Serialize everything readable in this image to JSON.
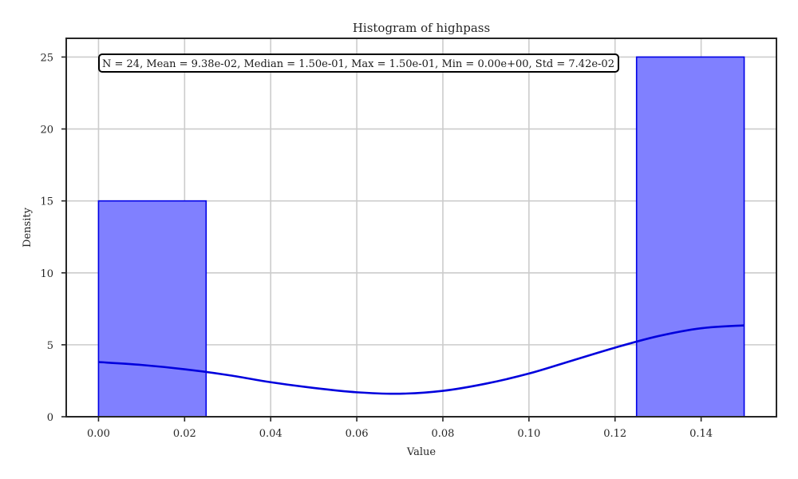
{
  "chart_data": {
    "type": "bar",
    "title": "Histogram of highpass",
    "xlabel": "Value",
    "ylabel": "Density",
    "xlim": [
      -0.0075,
      0.1575
    ],
    "ylim": [
      0,
      26.3
    ],
    "x_ticks": [
      0.0,
      0.02,
      0.04,
      0.06,
      0.08,
      0.1,
      0.12,
      0.14
    ],
    "x_tick_labels": [
      "0.00",
      "0.02",
      "0.04",
      "0.06",
      "0.08",
      "0.10",
      "0.12",
      "0.14"
    ],
    "y_ticks": [
      0,
      5,
      10,
      15,
      20,
      25
    ],
    "y_tick_labels": [
      "0",
      "5",
      "10",
      "15",
      "20",
      "25"
    ],
    "grid": true,
    "bins": [
      {
        "x0": 0.0,
        "x1": 0.025,
        "density": 15
      },
      {
        "x0": 0.025,
        "x1": 0.05,
        "density": 0
      },
      {
        "x0": 0.05,
        "x1": 0.075,
        "density": 0
      },
      {
        "x0": 0.075,
        "x1": 0.1,
        "density": 0
      },
      {
        "x0": 0.1,
        "x1": 0.125,
        "density": 0
      },
      {
        "x0": 0.125,
        "x1": 0.15,
        "density": 25
      }
    ],
    "kde": {
      "x": [
        0.0,
        0.01,
        0.02,
        0.03,
        0.04,
        0.05,
        0.06,
        0.07,
        0.08,
        0.09,
        0.1,
        0.11,
        0.12,
        0.13,
        0.14,
        0.15
      ],
      "y": [
        3.8,
        3.6,
        3.3,
        2.9,
        2.4,
        2.0,
        1.7,
        1.6,
        1.8,
        2.3,
        3.0,
        3.9,
        4.8,
        5.6,
        6.15,
        6.35
      ]
    },
    "stats_text": "N = 24, Mean = 9.38e-02, Median = 1.50e-01, Max = 1.50e-01, Min = 0.00e+00, Std = 7.42e-02",
    "colors": {
      "bar_fill": "#8080ff",
      "bar_edge": "#0000e6",
      "kde_line": "#0000dd",
      "grid": "#cccccc",
      "spine": "#262626"
    }
  }
}
